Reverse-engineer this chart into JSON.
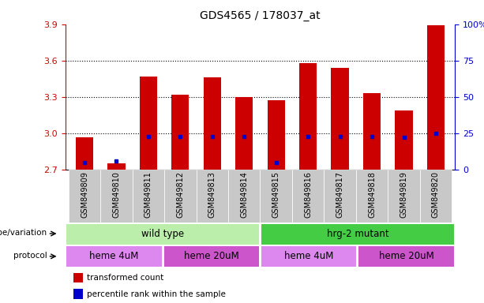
{
  "title": "GDS4565 / 178037_at",
  "samples": [
    "GSM849809",
    "GSM849810",
    "GSM849811",
    "GSM849812",
    "GSM849813",
    "GSM849814",
    "GSM849815",
    "GSM849816",
    "GSM849817",
    "GSM849818",
    "GSM849819",
    "GSM849820"
  ],
  "bar_values": [
    2.97,
    2.75,
    3.47,
    3.32,
    3.46,
    3.3,
    3.27,
    3.58,
    3.54,
    3.33,
    3.19,
    3.89
  ],
  "bar_bottom": 2.7,
  "blue_values": [
    2.76,
    2.77,
    2.975,
    2.975,
    2.975,
    2.975,
    2.76,
    2.975,
    2.975,
    2.975,
    2.965,
    3.0
  ],
  "ylim_left": [
    2.7,
    3.9
  ],
  "ylim_right": [
    0,
    100
  ],
  "yticks_left": [
    2.7,
    3.0,
    3.3,
    3.6,
    3.9
  ],
  "yticks_right": [
    0,
    25,
    50,
    75,
    100
  ],
  "ytick_labels_right": [
    "0",
    "25",
    "50",
    "75",
    "100%"
  ],
  "bar_color": "#cc0000",
  "blue_color": "#0000cc",
  "wt_color": "#bbeeaa",
  "mut_color": "#44cc44",
  "prot_color1": "#dd88ee",
  "prot_color2": "#cc55cc",
  "tick_bg": "#c8c8c8",
  "genotype_wt_label": "wild type",
  "genotype_mut_label": "hrg-2 mutant",
  "protocol_labels": [
    "heme 4uM",
    "heme 20uM",
    "heme 4uM",
    "heme 20uM"
  ],
  "legend_red": "transformed count",
  "legend_blue": "percentile rank within the sample",
  "genotype_label": "genotype/variation",
  "protocol_label": "protocol"
}
